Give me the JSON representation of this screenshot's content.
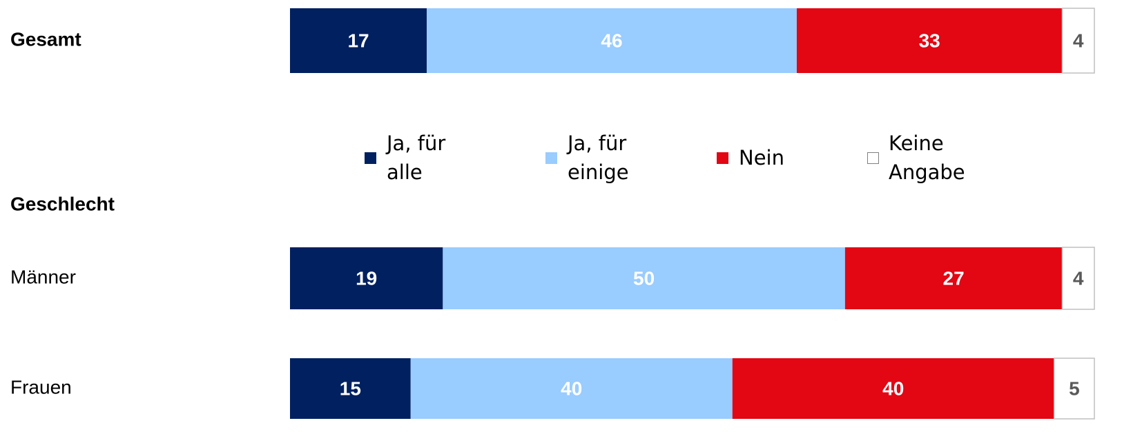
{
  "chart_data": {
    "type": "stacked-bar-horizontal",
    "categories": [
      "Gesamt",
      "Männer",
      "Frauen"
    ],
    "group_label": "Geschlecht",
    "xlim": [
      0,
      100
    ],
    "series": [
      {
        "name": "Ja, für alle",
        "color": "#002060",
        "values": [
          17,
          19,
          15
        ]
      },
      {
        "name": "Ja, für einige",
        "color": "#99ccff",
        "values": [
          46,
          50,
          40
        ]
      },
      {
        "name": "Nein",
        "color": "#e30613",
        "values": [
          33,
          27,
          40
        ]
      },
      {
        "name": "Keine Angabe",
        "color": "#ffffff",
        "values": [
          4,
          4,
          5
        ]
      }
    ]
  }
}
